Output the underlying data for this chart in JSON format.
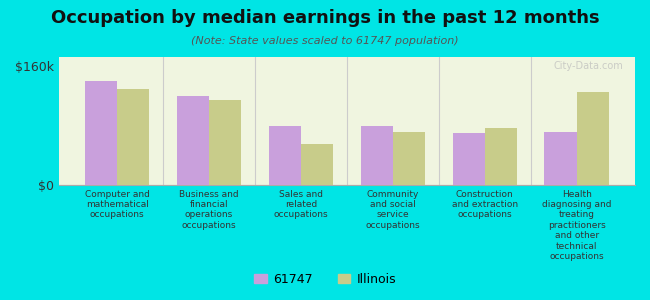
{
  "title": "Occupation by median earnings in the past 12 months",
  "subtitle": "(Note: State values scaled to 61747 population)",
  "background_color": "#00e5e5",
  "plot_bg_color": "#f0f5e0",
  "bar_color_61747": "#c9a0dc",
  "bar_color_illinois": "#c8cc8a",
  "ylim": [
    0,
    160000
  ],
  "ytick_labels": [
    "$0",
    "$160k"
  ],
  "categories": [
    "Computer and\nmathematical\noccupations",
    "Business and\nfinancial\noperations\noccupations",
    "Sales and\nrelated\noccupations",
    "Community\nand social\nservice\noccupations",
    "Construction\nand extraction\noccupations",
    "Health\ndiagnosing and\ntreating\npractitioners\nand other\ntechnical\noccupations"
  ],
  "values_61747": [
    140000,
    120000,
    80000,
    80000,
    70000,
    72000
  ],
  "values_illinois": [
    130000,
    115000,
    55000,
    72000,
    77000,
    125000
  ],
  "legend_labels": [
    "61747",
    "Illinois"
  ],
  "watermark": "City-Data.com"
}
